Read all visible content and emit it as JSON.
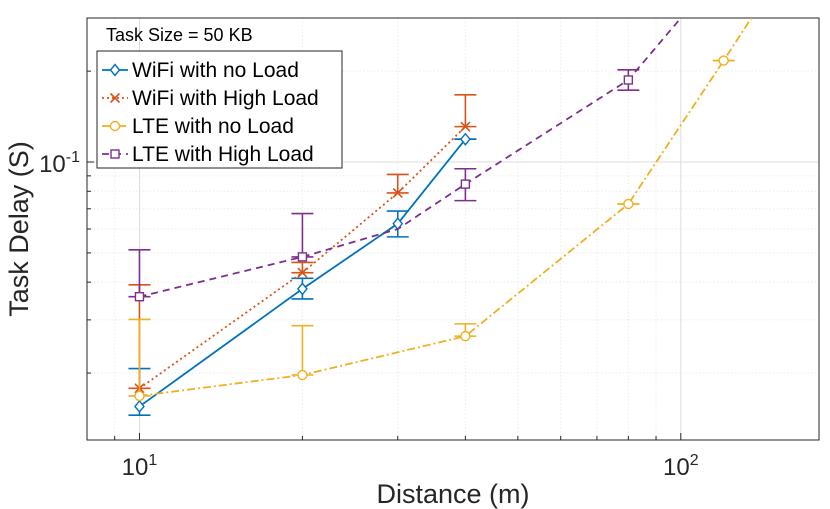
{
  "chart_data": {
    "type": "line",
    "title": "Task Size = 50 KB",
    "xlabel": "Distance (m)",
    "ylabel": "Task Delay (S)",
    "xscale": "log",
    "yscale": "log",
    "xlim": [
      8,
      180
    ],
    "ylim": [
      0.012,
      0.3
    ],
    "xticks": [
      {
        "value": 10,
        "base": "10",
        "exp": "1"
      },
      {
        "value": 100,
        "base": "10",
        "exp": "2"
      }
    ],
    "yticks": [
      {
        "value": 0.1,
        "base": "10",
        "exp": "-1"
      }
    ],
    "grid": true,
    "legend_position": "top-left",
    "series": [
      {
        "name": "WiFi with no Load",
        "color": "#0072BD",
        "marker": "diamond",
        "line_style": "solid",
        "x": [
          10,
          20,
          30,
          40
        ],
        "y": [
          0.0155,
          0.038,
          0.0625,
          0.119
        ],
        "err_low": [
          0.0145,
          0.0352,
          0.0565,
          0.119
        ],
        "err_high": [
          0.0207,
          0.0412,
          0.0688,
          0.119
        ],
        "curve_x": [
          10,
          20,
          30,
          40
        ],
        "curve_y": [
          0.0155,
          0.038,
          0.0625,
          0.119
        ]
      },
      {
        "name": "WiFi with High Load",
        "color": "#D95319",
        "marker": "x",
        "line_style": "dotted",
        "x": [
          10,
          20,
          30,
          40
        ],
        "y": [
          0.0178,
          0.043,
          0.079,
          0.131
        ],
        "err_low": [
          0.0178,
          0.043,
          0.079,
          0.131
        ],
        "err_high": [
          0.0392,
          0.0465,
          0.091,
          0.167
        ],
        "curve_x": [
          10,
          20,
          30,
          40
        ],
        "curve_y": [
          0.0178,
          0.043,
          0.079,
          0.131
        ]
      },
      {
        "name": "LTE with no Load",
        "color": "#EDB120",
        "marker": "circle",
        "line_style": "dash-dot",
        "x": [
          10,
          20,
          40,
          80,
          120
        ],
        "y": [
          0.0168,
          0.0197,
          0.0265,
          0.0726,
          0.2168
        ],
        "err_low": [
          0.0168,
          0.0197,
          0.0265,
          0.0726,
          0.2168
        ],
        "err_high": [
          0.0301,
          0.0287,
          0.0291,
          0.0726,
          0.2168
        ],
        "curve_x": [
          10,
          20,
          40,
          80,
          120,
          135
        ],
        "curve_y": [
          0.0168,
          0.0197,
          0.0265,
          0.0726,
          0.2168,
          0.3
        ]
      },
      {
        "name": "LTE with High Load",
        "color": "#7E2F8E",
        "marker": "square",
        "line_style": "dashed",
        "x": [
          10,
          20,
          40,
          80
        ],
        "y": [
          0.0358,
          0.0485,
          0.0845,
          0.187
        ],
        "err_low": [
          0.0358,
          0.0485,
          0.0745,
          0.173
        ],
        "err_high": [
          0.0512,
          0.0675,
          0.095,
          0.202
        ],
        "curve_x": [
          10,
          20,
          30,
          40,
          80,
          100
        ],
        "curve_y": [
          0.0358,
          0.0485,
          0.06,
          0.0845,
          0.187,
          0.3
        ]
      }
    ]
  }
}
